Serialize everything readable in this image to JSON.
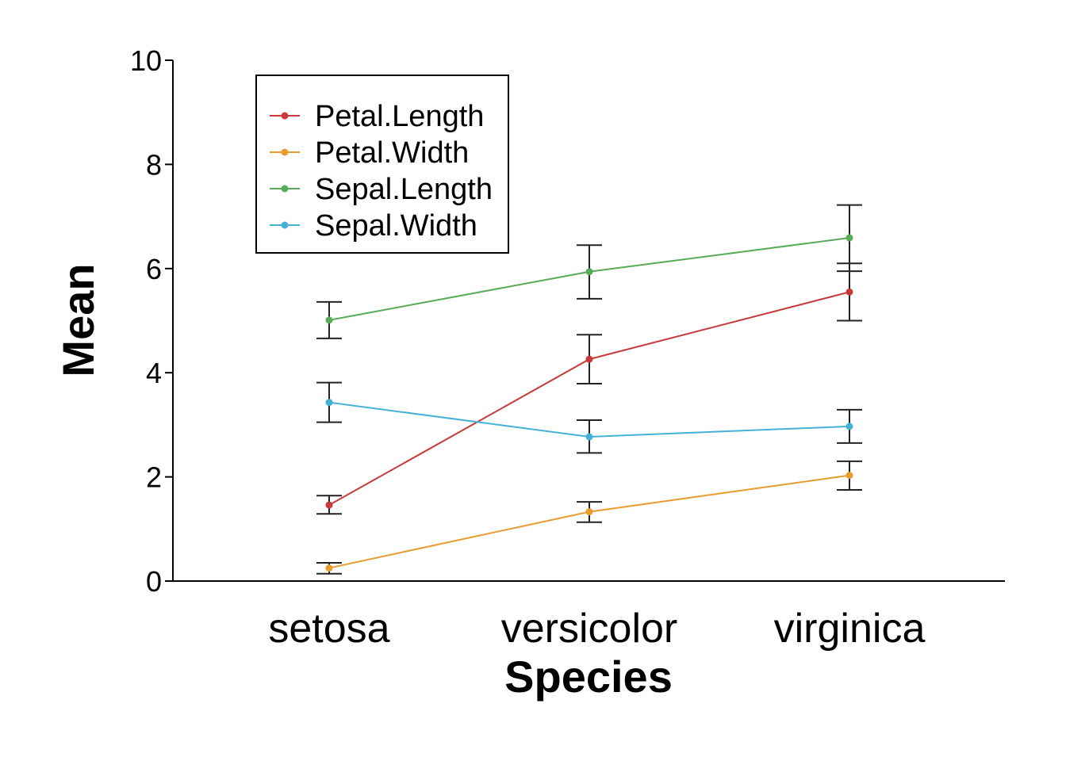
{
  "chart_data": {
    "type": "line",
    "xlabel": "Species",
    "ylabel": "Mean",
    "categories": [
      "setosa",
      "versicolor",
      "virginica"
    ],
    "ylim": [
      0,
      10
    ],
    "yticks": [
      0,
      2,
      4,
      6,
      8,
      10
    ],
    "grid": false,
    "error_bars": true,
    "legend": {
      "position": "top-left",
      "entries": [
        "Petal.Length",
        "Petal.Width",
        "Sepal.Length",
        "Sepal.Width"
      ]
    },
    "series": [
      {
        "name": "Petal.Length",
        "color": "#c8393b",
        "values": [
          1.46,
          4.26,
          5.55
        ],
        "lower": [
          1.29,
          3.79,
          5.0
        ],
        "upper": [
          1.64,
          4.73,
          6.1
        ]
      },
      {
        "name": "Petal.Width",
        "color": "#e89c2f",
        "values": [
          0.25,
          1.33,
          2.03
        ],
        "lower": [
          0.14,
          1.13,
          1.75
        ],
        "upper": [
          0.35,
          1.52,
          2.3
        ]
      },
      {
        "name": "Sepal.Length",
        "color": "#56ac57",
        "values": [
          5.01,
          5.94,
          6.59
        ],
        "lower": [
          4.66,
          5.42,
          5.95
        ],
        "upper": [
          5.36,
          6.45,
          7.22
        ]
      },
      {
        "name": "Sepal.Width",
        "color": "#46b1d7",
        "values": [
          3.43,
          2.77,
          2.97
        ],
        "lower": [
          3.05,
          2.46,
          2.65
        ],
        "upper": [
          3.81,
          3.09,
          3.29
        ]
      }
    ]
  }
}
